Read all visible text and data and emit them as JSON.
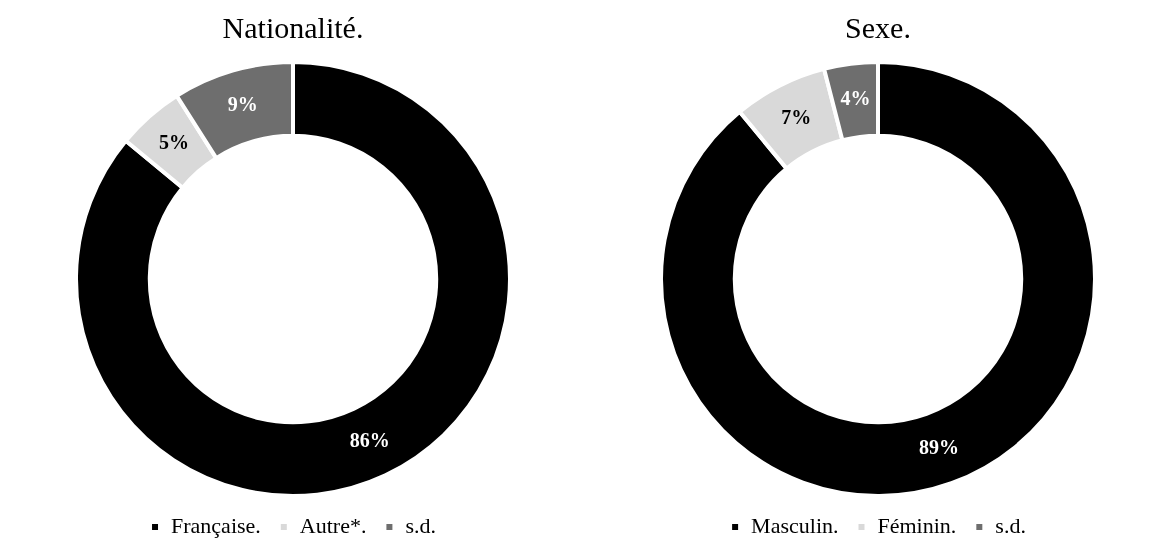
{
  "chart_data": [
    {
      "type": "donut",
      "title": "Nationalité.",
      "categories": [
        "Française.",
        "Autre*.",
        "s.d."
      ],
      "values": [
        86,
        5,
        9
      ],
      "colors": [
        "#000000",
        "#d9d9d9",
        "#6e6e6e"
      ],
      "value_labels": [
        "86%",
        "5%",
        "9%"
      ],
      "legend": "bottom"
    },
    {
      "type": "donut",
      "title": "Sexe.",
      "categories": [
        "Masculin.",
        "Féminin.",
        "s.d."
      ],
      "values": [
        89,
        7,
        4
      ],
      "colors": [
        "#000000",
        "#d9d9d9",
        "#6e6e6e"
      ],
      "value_labels": [
        "89%",
        "7%",
        "4%"
      ],
      "legend": "bottom"
    }
  ]
}
